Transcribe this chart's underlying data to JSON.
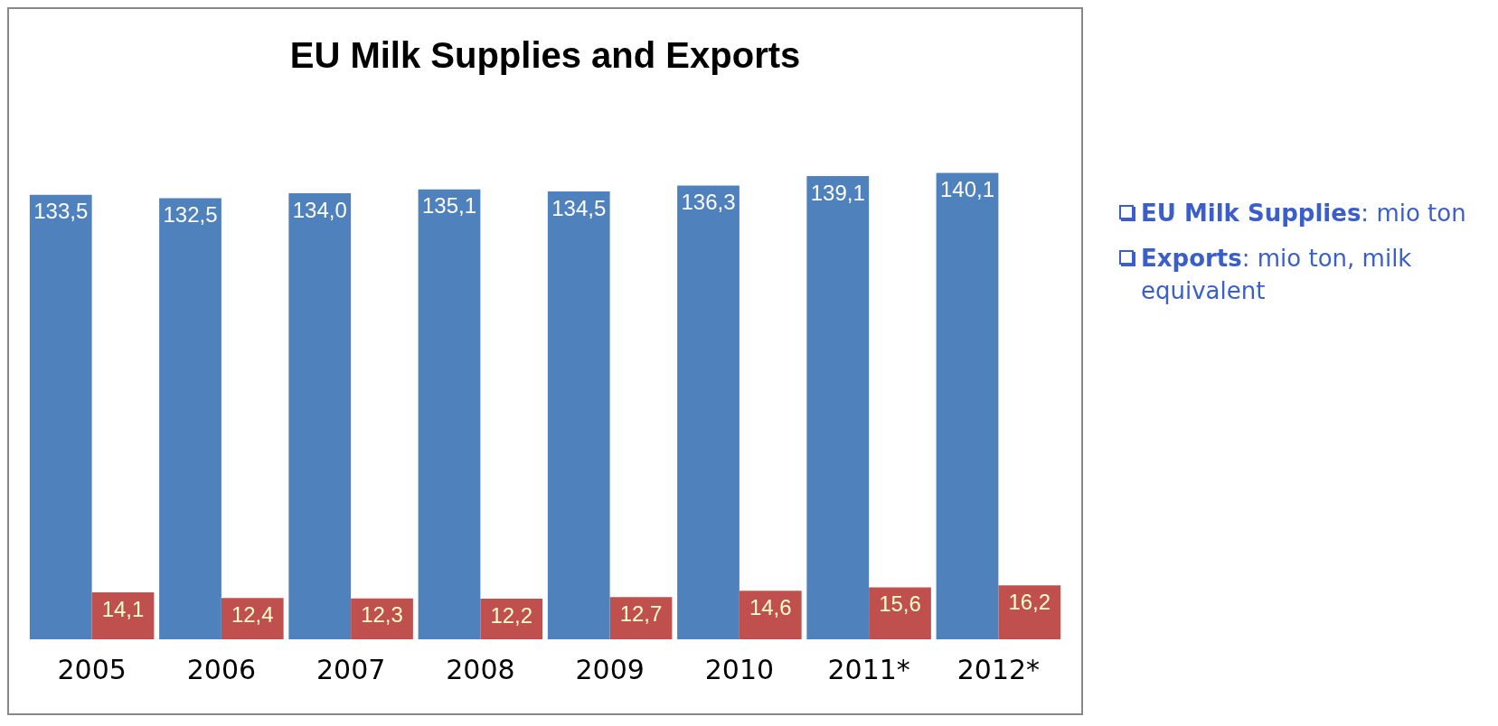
{
  "chart_data": {
    "type": "bar",
    "title": "EU Milk Supplies and Exports",
    "categories": [
      "2005",
      "2006",
      "2007",
      "2008",
      "2009",
      "2010",
      "2011*",
      "2012*"
    ],
    "series": [
      {
        "color": "#4f81bd",
        "values": [
          133.5,
          132.5,
          134.0,
          135.1,
          134.5,
          136.3,
          139.1,
          140.1
        ],
        "value_labels": [
          "133,5",
          "132,5",
          "134,0",
          "135,1",
          "134,5",
          "136,3",
          "139,1",
          "140,1"
        ]
      },
      {
        "color": "#c0504d",
        "values": [
          14.1,
          12.4,
          12.3,
          12.2,
          12.7,
          14.6,
          15.6,
          16.2
        ],
        "value_labels": [
          "14,1",
          "12,4",
          "12,3",
          "12,2",
          "12,7",
          "14,6",
          "15,6",
          "16,2"
        ]
      }
    ],
    "tick_labels": "x",
    "grid": false,
    "legend": false,
    "annotations": [
      "EU Milk Supplies: mio ton",
      "Exports: mio ton, milk equivalent"
    ]
  }
}
